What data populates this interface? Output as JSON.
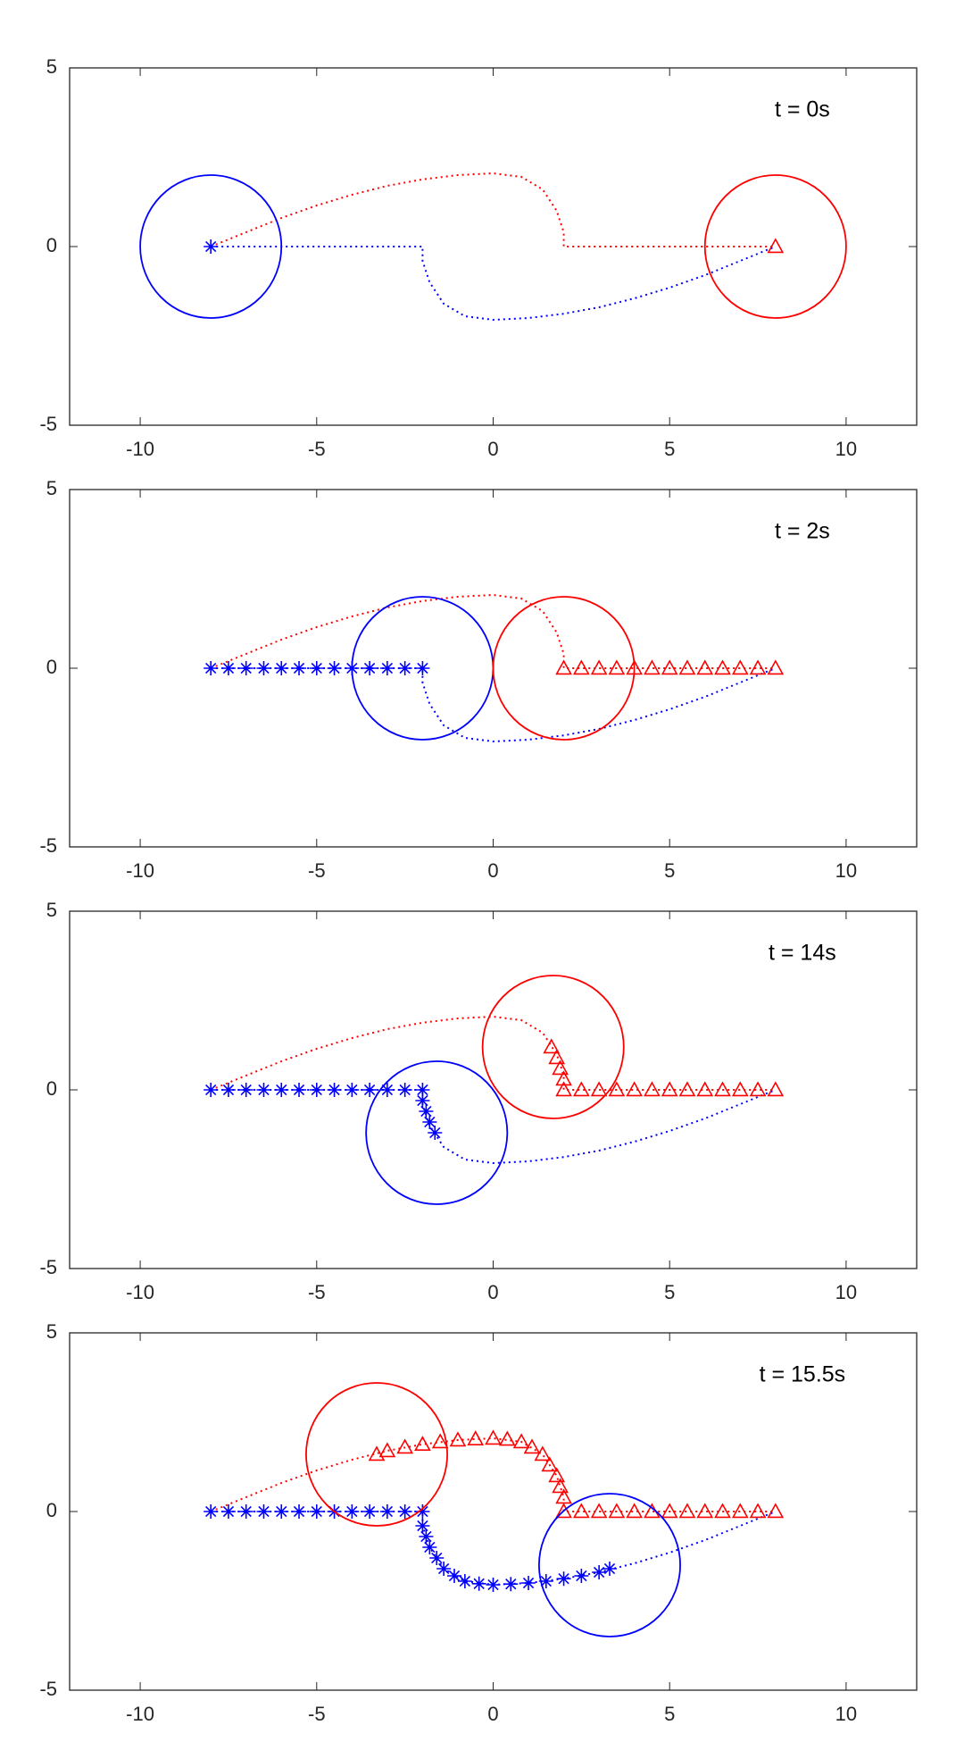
{
  "chart_data": [
    {
      "type": "line",
      "annotation": "t = 0s",
      "xlim": [
        -12,
        12
      ],
      "ylim": [
        -5,
        5
      ],
      "xticks": [
        -10,
        -5,
        0,
        5,
        10
      ],
      "yticks": [
        -5,
        0,
        5
      ],
      "series": [
        {
          "color": "#ff0000",
          "style": "dotted",
          "x": [
            -8,
            -7,
            -6,
            -5,
            -4,
            -3,
            -2,
            -1,
            0,
            0.8,
            1.4,
            1.8,
            2,
            2,
            8
          ],
          "y": [
            0,
            0.4,
            0.8,
            1.15,
            1.45,
            1.7,
            1.88,
            2,
            2.05,
            1.95,
            1.6,
            1,
            0.4,
            0,
            0
          ]
        },
        {
          "color": "#0000ff",
          "style": "dotted",
          "x": [
            -8,
            -2,
            -2,
            -1.8,
            -1.4,
            -0.8,
            0,
            1,
            2,
            3,
            4,
            5,
            6,
            7,
            8
          ],
          "y": [
            0,
            0,
            -0.4,
            -1,
            -1.6,
            -1.95,
            -2.05,
            -2,
            -1.88,
            -1.7,
            -1.45,
            -1.15,
            -0.8,
            -0.4,
            0
          ]
        },
        {
          "color": "#0000ff",
          "marker": "star",
          "x": [
            -8
          ],
          "y": [
            0
          ]
        },
        {
          "color": "#ff0000",
          "marker": "triangle",
          "x": [
            8
          ],
          "y": [
            0
          ]
        }
      ],
      "circles": [
        {
          "color": "#0000ff",
          "x": -8,
          "y": 0,
          "r": 2
        },
        {
          "color": "#ff0000",
          "x": 8,
          "y": 0,
          "r": 2
        }
      ]
    },
    {
      "type": "line",
      "annotation": "t = 2s",
      "xlim": [
        -12,
        12
      ],
      "ylim": [
        -5,
        5
      ],
      "xticks": [
        -10,
        -5,
        0,
        5,
        10
      ],
      "yticks": [
        -5,
        0,
        5
      ],
      "series": [
        {
          "color": "#ff0000",
          "style": "dotted",
          "x": [
            -8,
            -7,
            -6,
            -5,
            -4,
            -3,
            -2,
            -1,
            0,
            0.8,
            1.4,
            1.8,
            2,
            2,
            8
          ],
          "y": [
            0,
            0.4,
            0.8,
            1.15,
            1.45,
            1.7,
            1.88,
            2,
            2.05,
            1.95,
            1.6,
            1,
            0.4,
            0,
            0
          ]
        },
        {
          "color": "#0000ff",
          "style": "dotted",
          "x": [
            -8,
            -2,
            -2,
            -1.8,
            -1.4,
            -0.8,
            0,
            1,
            2,
            3,
            4,
            5,
            6,
            7,
            8
          ],
          "y": [
            0,
            0,
            -0.4,
            -1,
            -1.6,
            -1.95,
            -2.05,
            -2,
            -1.88,
            -1.7,
            -1.45,
            -1.15,
            -0.8,
            -0.4,
            0
          ]
        },
        {
          "color": "#0000ff",
          "marker": "star",
          "x": [
            -8,
            -7.5,
            -7,
            -6.5,
            -6,
            -5.5,
            -5,
            -4.5,
            -4,
            -3.5,
            -3,
            -2.5,
            -2
          ],
          "y": [
            0,
            0,
            0,
            0,
            0,
            0,
            0,
            0,
            0,
            0,
            0,
            0,
            0
          ]
        },
        {
          "color": "#ff0000",
          "marker": "triangle",
          "x": [
            8,
            7.5,
            7,
            6.5,
            6,
            5.5,
            5,
            4.5,
            4,
            3.5,
            3,
            2.5,
            2
          ],
          "y": [
            0,
            0,
            0,
            0,
            0,
            0,
            0,
            0,
            0,
            0,
            0,
            0,
            0
          ]
        }
      ],
      "circles": [
        {
          "color": "#0000ff",
          "x": -2,
          "y": 0,
          "r": 2
        },
        {
          "color": "#ff0000",
          "x": 2,
          "y": 0,
          "r": 2
        }
      ]
    },
    {
      "type": "line",
      "annotation": "t = 14s",
      "xlim": [
        -12,
        12
      ],
      "ylim": [
        -5,
        5
      ],
      "xticks": [
        -10,
        -5,
        0,
        5,
        10
      ],
      "yticks": [
        -5,
        0,
        5
      ],
      "series": [
        {
          "color": "#ff0000",
          "style": "dotted",
          "x": [
            -8,
            -7,
            -6,
            -5,
            -4,
            -3,
            -2,
            -1,
            0,
            0.8,
            1.4,
            1.8,
            2,
            2,
            8
          ],
          "y": [
            0,
            0.4,
            0.8,
            1.15,
            1.45,
            1.7,
            1.88,
            2,
            2.05,
            1.95,
            1.6,
            1,
            0.4,
            0,
            0
          ]
        },
        {
          "color": "#0000ff",
          "style": "dotted",
          "x": [
            -8,
            -2,
            -2,
            -1.8,
            -1.4,
            -0.8,
            0,
            1,
            2,
            3,
            4,
            5,
            6,
            7,
            8
          ],
          "y": [
            0,
            0,
            -0.4,
            -1,
            -1.6,
            -1.95,
            -2.05,
            -2,
            -1.88,
            -1.7,
            -1.45,
            -1.15,
            -0.8,
            -0.4,
            0
          ]
        },
        {
          "color": "#0000ff",
          "marker": "star",
          "x": [
            -8,
            -7.5,
            -7,
            -6.5,
            -6,
            -5.5,
            -5,
            -4.5,
            -4,
            -3.5,
            -3,
            -2.5,
            -2,
            -2,
            -1.9,
            -1.8,
            -1.65
          ],
          "y": [
            0,
            0,
            0,
            0,
            0,
            0,
            0,
            0,
            0,
            0,
            0,
            0,
            0,
            -0.3,
            -0.6,
            -0.9,
            -1.2
          ]
        },
        {
          "color": "#ff0000",
          "marker": "triangle",
          "x": [
            8,
            7.5,
            7,
            6.5,
            6,
            5.5,
            5,
            4.5,
            4,
            3.5,
            3,
            2.5,
            2,
            2,
            1.9,
            1.8,
            1.65
          ],
          "y": [
            0,
            0,
            0,
            0,
            0,
            0,
            0,
            0,
            0,
            0,
            0,
            0,
            0,
            0.3,
            0.6,
            0.9,
            1.2
          ]
        }
      ],
      "circles": [
        {
          "color": "#0000ff",
          "x": -1.6,
          "y": -1.2,
          "r": 2
        },
        {
          "color": "#ff0000",
          "x": 1.7,
          "y": 1.2,
          "r": 2
        }
      ]
    },
    {
      "type": "line",
      "annotation": "t = 15.5s",
      "xlim": [
        -12,
        12
      ],
      "ylim": [
        -5,
        5
      ],
      "xticks": [
        -10,
        -5,
        0,
        5,
        10
      ],
      "yticks": [
        -5,
        0,
        5
      ],
      "series": [
        {
          "color": "#ff0000",
          "style": "dotted",
          "x": [
            -8,
            -7,
            -6,
            -5,
            -4,
            -3,
            -2,
            -1,
            0,
            0.8,
            1.4,
            1.8,
            2,
            2,
            8
          ],
          "y": [
            0,
            0.4,
            0.8,
            1.15,
            1.45,
            1.7,
            1.88,
            2,
            2.05,
            1.95,
            1.6,
            1,
            0.4,
            0,
            0
          ]
        },
        {
          "color": "#0000ff",
          "style": "dotted",
          "x": [
            -8,
            -2,
            -2,
            -1.8,
            -1.4,
            -0.8,
            0,
            1,
            2,
            3,
            4,
            5,
            6,
            7,
            8
          ],
          "y": [
            0,
            0,
            -0.4,
            -1,
            -1.6,
            -1.95,
            -2.05,
            -2,
            -1.88,
            -1.7,
            -1.45,
            -1.15,
            -0.8,
            -0.4,
            0
          ]
        },
        {
          "color": "#0000ff",
          "marker": "star",
          "x": [
            -8,
            -7.5,
            -7,
            -6.5,
            -6,
            -5.5,
            -5,
            -4.5,
            -4,
            -3.5,
            -3,
            -2.5,
            -2,
            -2,
            -1.9,
            -1.8,
            -1.6,
            -1.4,
            -1.1,
            -0.8,
            -0.4,
            0,
            0.5,
            1,
            1.5,
            2,
            2.5,
            3,
            3.3
          ],
          "y": [
            0,
            0,
            0,
            0,
            0,
            0,
            0,
            0,
            0,
            0,
            0,
            0,
            0,
            -0.4,
            -0.7,
            -1,
            -1.3,
            -1.6,
            -1.8,
            -1.95,
            -2.02,
            -2.05,
            -2.03,
            -2,
            -1.95,
            -1.88,
            -1.8,
            -1.7,
            -1.6
          ]
        },
        {
          "color": "#ff0000",
          "marker": "triangle",
          "x": [
            8,
            7.5,
            7,
            6.5,
            6,
            5.5,
            5,
            4.5,
            4,
            3.5,
            3,
            2.5,
            2,
            2,
            1.9,
            1.8,
            1.6,
            1.4,
            1.1,
            0.8,
            0.4,
            0,
            -0.5,
            -1,
            -1.5,
            -2,
            -2.5,
            -3,
            -3.3
          ],
          "y": [
            0,
            0,
            0,
            0,
            0,
            0,
            0,
            0,
            0,
            0,
            0,
            0,
            0,
            0.4,
            0.7,
            1,
            1.3,
            1.6,
            1.8,
            1.95,
            2.02,
            2.05,
            2.03,
            2,
            1.95,
            1.88,
            1.8,
            1.7,
            1.6
          ]
        }
      ],
      "circles": [
        {
          "color": "#0000ff",
          "x": 3.3,
          "y": -1.5,
          "r": 2
        },
        {
          "color": "#ff0000",
          "x": -3.3,
          "y": 1.6,
          "r": 2
        }
      ]
    }
  ]
}
